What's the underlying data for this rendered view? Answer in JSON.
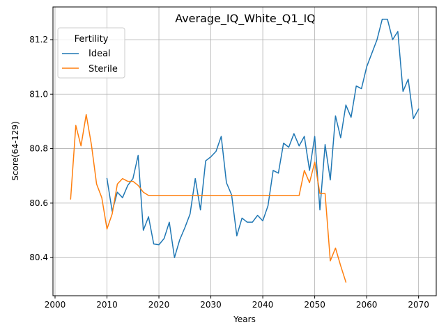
{
  "chart_data": {
    "type": "line",
    "title": "Average_IQ_White_Q1_IQ",
    "xlabel": "Years",
    "ylabel": "Score(64-129)",
    "xlim": [
      1999.6,
      2073.4
    ],
    "ylim": [
      80.26,
      81.32
    ],
    "xticks": [
      2000,
      2010,
      2020,
      2030,
      2040,
      2050,
      2060,
      2070
    ],
    "yticks": [
      80.4,
      80.6,
      80.8,
      81.0,
      81.2
    ],
    "xtick_labels": [
      "2000",
      "2010",
      "2020",
      "2030",
      "2040",
      "2050",
      "2060",
      "2070"
    ],
    "ytick_labels": [
      "80.4",
      "80.6",
      "80.8",
      "81.0",
      "81.2"
    ],
    "grid": true,
    "legend": {
      "title": "Fertility",
      "placement": "top-left"
    },
    "series": [
      {
        "name": "Ideal",
        "color": "#1f77b4",
        "x": [
          2010,
          2011,
          2012,
          2013,
          2014,
          2015,
          2016,
          2017,
          2018,
          2019,
          2020,
          2021,
          2022,
          2023,
          2024,
          2025,
          2026,
          2027,
          2028,
          2029,
          2030,
          2031,
          2032,
          2033,
          2034,
          2035,
          2036,
          2037,
          2038,
          2039,
          2040,
          2041,
          2042,
          2043,
          2044,
          2045,
          2046,
          2047,
          2048,
          2049,
          2050,
          2051,
          2052,
          2053,
          2054,
          2055,
          2056,
          2057,
          2058,
          2059,
          2060,
          2061,
          2062,
          2063,
          2064,
          2065,
          2066,
          2067,
          2068,
          2069,
          2070
        ],
        "y": [
          80.69,
          80.57,
          80.64,
          80.62,
          80.665,
          80.69,
          80.775,
          80.5,
          80.55,
          80.45,
          80.447,
          80.47,
          80.53,
          80.4,
          80.465,
          80.51,
          80.56,
          80.69,
          80.575,
          80.755,
          80.77,
          80.79,
          80.845,
          80.675,
          80.63,
          80.48,
          80.545,
          80.53,
          80.53,
          80.555,
          80.535,
          80.59,
          80.72,
          80.71,
          80.82,
          80.805,
          80.855,
          80.81,
          80.845,
          80.72,
          80.845,
          80.575,
          80.815,
          80.685,
          80.92,
          80.84,
          80.96,
          80.915,
          81.03,
          81.02,
          81.1,
          81.15,
          81.2,
          81.275,
          81.275,
          81.2,
          81.23,
          81.01,
          81.055,
          80.91,
          80.945
        ]
      },
      {
        "name": "Sterile",
        "color": "#ff7f0e",
        "x": [
          2003,
          2004,
          2005,
          2006,
          2007,
          2008,
          2009,
          2010,
          2011,
          2012,
          2013,
          2014,
          2015,
          2016,
          2017,
          2018,
          2019,
          2020,
          2021,
          2022,
          2023,
          2024,
          2025,
          2026,
          2027,
          2028,
          2029,
          2030,
          2031,
          2032,
          2033,
          2034,
          2035,
          2036,
          2037,
          2038,
          2039,
          2040,
          2041,
          2042,
          2043,
          2044,
          2045,
          2046,
          2047,
          2048,
          2049,
          2050,
          2051,
          2052,
          2053,
          2054,
          2055,
          2056
        ],
        "y": [
          80.615,
          80.885,
          80.81,
          80.925,
          80.815,
          80.67,
          80.62,
          80.505,
          80.56,
          80.67,
          80.69,
          80.68,
          80.68,
          80.665,
          80.64,
          80.628,
          80.628,
          80.628,
          80.628,
          80.628,
          80.628,
          80.628,
          80.628,
          80.628,
          80.628,
          80.628,
          80.628,
          80.628,
          80.628,
          80.628,
          80.628,
          80.628,
          80.628,
          80.628,
          80.628,
          80.628,
          80.628,
          80.628,
          80.628,
          80.628,
          80.628,
          80.628,
          80.628,
          80.628,
          80.628,
          80.72,
          80.675,
          80.75,
          80.635,
          80.635,
          80.388,
          80.435,
          80.37,
          80.31
        ]
      }
    ]
  }
}
